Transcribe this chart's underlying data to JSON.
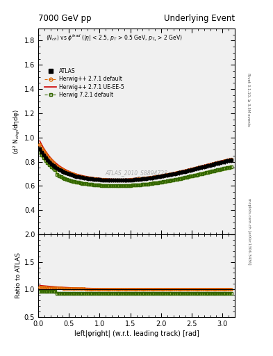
{
  "title_left": "7000 GeV pp",
  "title_right": "Underlying Event",
  "right_label_top": "Rivet 3.1.10, ≥ 3.5M events",
  "right_label_bottom": "mcplots.cern.ch [arXiv:1306.3436]",
  "annotation": "ATLAS_2010_S8894728",
  "ylabel_main": "⟨d² N$_{chg}$/dηdφ⟩",
  "ylabel_ratio": "Ratio to ATLAS",
  "xlabel": "left|φright| (w.r.t. leading track) [rad]",
  "xlim": [
    0,
    3.2
  ],
  "ylim_main": [
    0.2,
    1.9
  ],
  "ylim_ratio": [
    0.5,
    2.0
  ],
  "yticks_main": [
    0.4,
    0.6,
    0.8,
    1.0,
    1.2,
    1.4,
    1.6,
    1.8
  ],
  "yticks_ratio": [
    0.5,
    1.0,
    1.5,
    2.0
  ],
  "background_color": "#f0f0f0",
  "atlas_color": "#000000",
  "herwig271_default_color": "#dd6600",
  "herwig271_default_band": "#ffcc88",
  "herwig271_ueee5_color": "#cc0000",
  "herwig721_default_color": "#336600",
  "herwig721_default_band": "#aad400"
}
